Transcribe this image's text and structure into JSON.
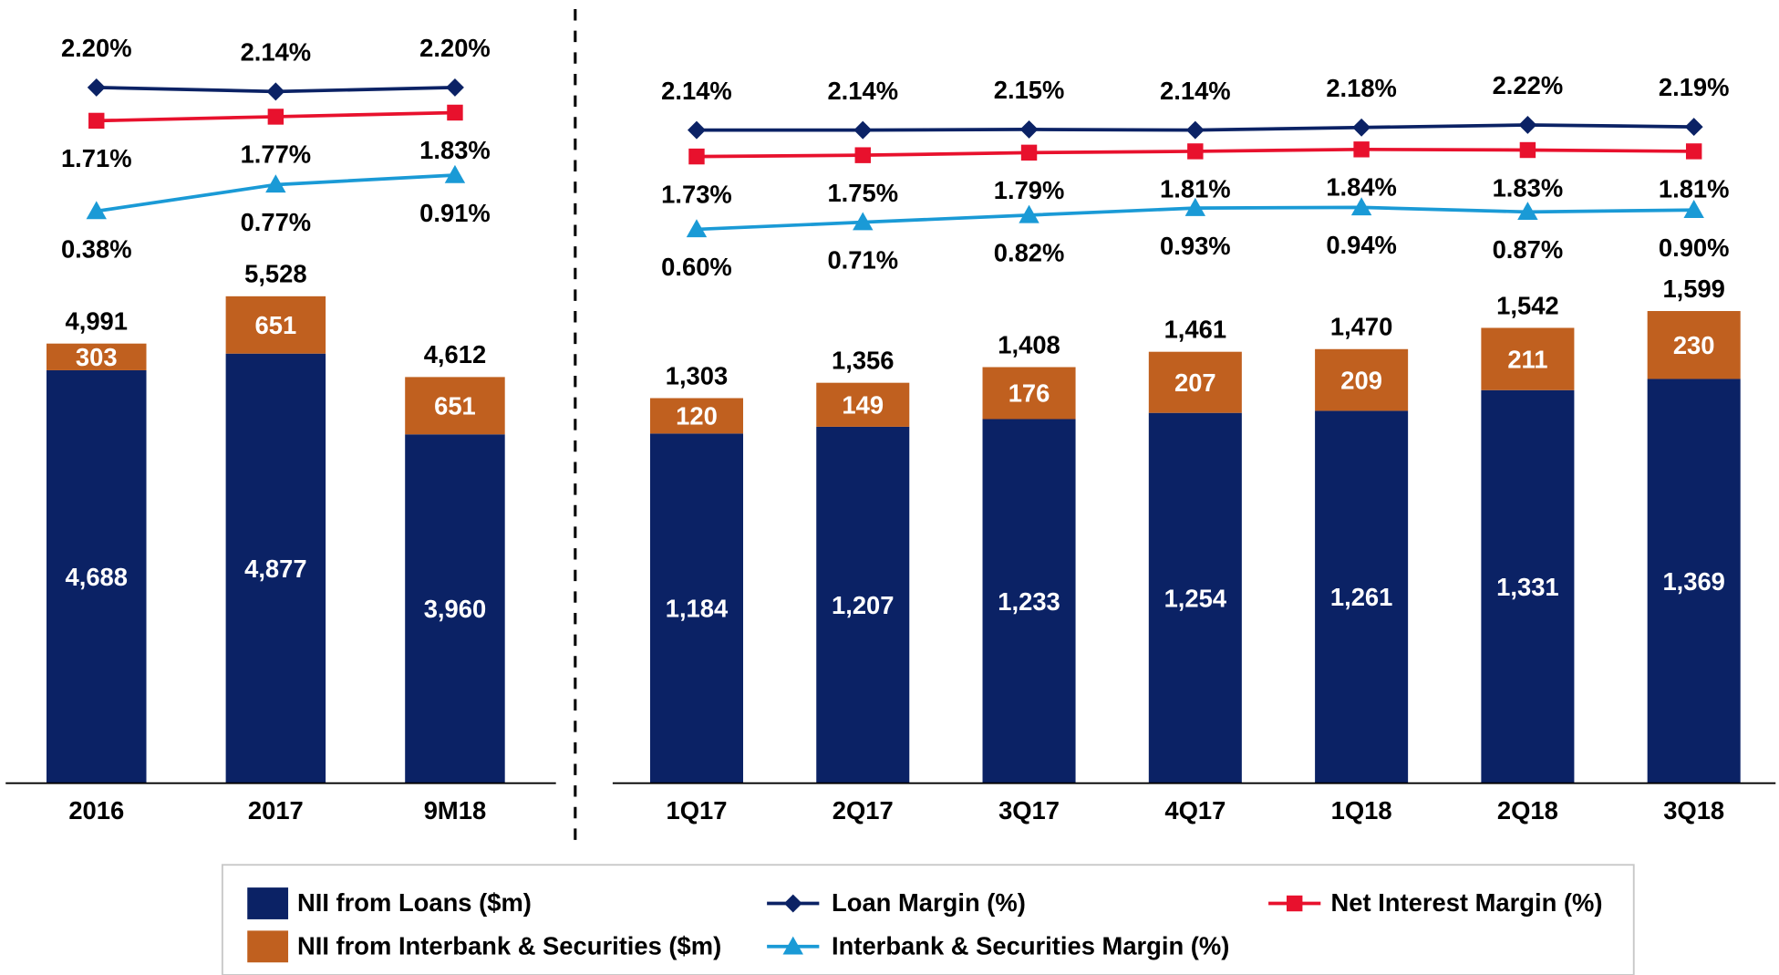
{
  "chart_data": [
    {
      "type": "bar",
      "categories": [
        "2016",
        "2017",
        "9M18"
      ],
      "series": [
        {
          "name": "NII from Loans ($m)",
          "color": "#0b2265",
          "type": "bar",
          "values": [
            4688,
            4877,
            3960
          ],
          "value_labels": [
            "4,688",
            "4,877",
            "3,960"
          ]
        },
        {
          "name": "NII from Interbank & Securities ($m)",
          "color": "#c0601f",
          "type": "bar",
          "values": [
            303,
            651,
            651
          ]
        },
        {
          "name": "Loan Margin (%)",
          "color": "#0b2265",
          "type": "line",
          "marker": "diamond",
          "values": [
            2.2,
            2.14,
            2.2
          ],
          "value_labels": [
            "2.20%",
            "2.14%",
            "2.20%"
          ]
        },
        {
          "name": "Net Interest Margin (%)",
          "color": "#e8112d",
          "type": "line",
          "marker": "square",
          "values": [
            1.71,
            1.77,
            1.83
          ],
          "value_labels": [
            "1.71%",
            "1.77%",
            "1.83%"
          ]
        },
        {
          "name": "Interbank & Securities Margin (%)",
          "color": "#1a9ad6",
          "type": "line",
          "marker": "triangle",
          "values": [
            0.38,
            0.77,
            0.91
          ],
          "value_labels": [
            "0.38%",
            "0.77%",
            "0.91%"
          ]
        }
      ],
      "totals": {
        "values": [
          4991,
          5528,
          4612
        ],
        "value_labels": [
          "4,991",
          "5,528",
          "4,612"
        ]
      }
    },
    {
      "type": "bar",
      "categories": [
        "1Q17",
        "2Q17",
        "3Q17",
        "4Q17",
        "1Q18",
        "2Q18",
        "3Q18"
      ],
      "series": [
        {
          "color": "#0b2265",
          "type": "bar",
          "values": [
            1184,
            1207,
            1233,
            1254,
            1261,
            1331,
            1369
          ],
          "value_labels": [
            "1,184",
            "1,207",
            "1,233",
            "1,254",
            "1,261",
            "1,331",
            "1,369"
          ]
        },
        {
          "color": "#c0601f",
          "type": "bar",
          "values": [
            120,
            149,
            176,
            207,
            209,
            211,
            230
          ]
        },
        {
          "color": "#0b2265",
          "type": "line",
          "marker": "diamond",
          "values": [
            2.14,
            2.14,
            2.15,
            2.14,
            2.18,
            2.22,
            2.19
          ],
          "value_labels": [
            "2.14%",
            "2.14%",
            "2.15%",
            "2.14%",
            "2.18%",
            "2.22%",
            "2.19%"
          ]
        },
        {
          "color": "#e8112d",
          "type": "line",
          "marker": "square",
          "values": [
            1.73,
            1.75,
            1.79,
            1.81,
            1.84,
            1.83,
            1.81
          ],
          "value_labels": [
            "1.73%",
            "1.75%",
            "1.79%",
            "1.81%",
            "1.84%",
            "1.83%",
            "1.81%"
          ]
        },
        {
          "color": "#1a9ad6",
          "type": "line",
          "marker": "triangle",
          "values": [
            0.6,
            0.71,
            0.82,
            0.93,
            0.94,
            0.87,
            0.9
          ],
          "value_labels": [
            "0.60%",
            "0.71%",
            "0.82%",
            "0.93%",
            "0.94%",
            "0.87%",
            "0.90%"
          ]
        }
      ],
      "totals": {
        "values": [
          1303,
          1356,
          1408,
          1461,
          1470,
          1542,
          1599
        ],
        "value_labels": [
          "1,303",
          "1,356",
          "1,408",
          "1,461",
          "1,470",
          "1,542",
          "1,599"
        ]
      }
    }
  ]
}
